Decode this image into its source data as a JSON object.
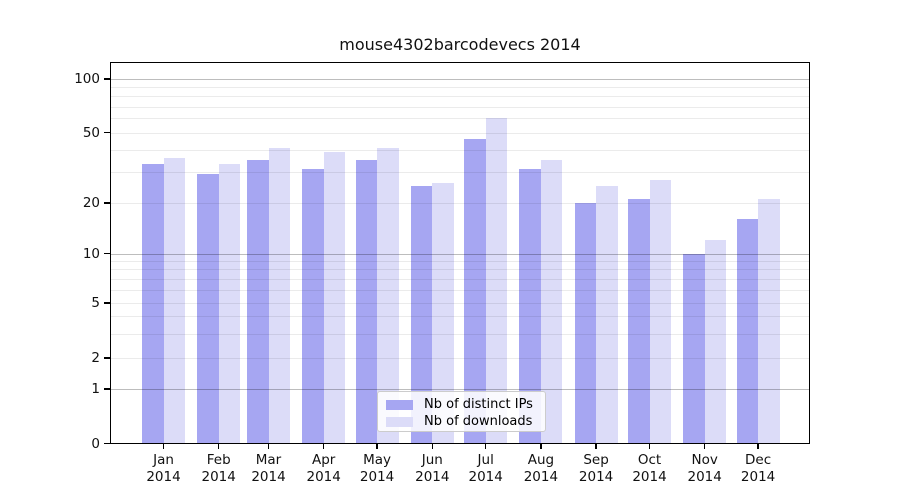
{
  "title": "mouse4302barcodevecs 2014",
  "chart_data": {
    "type": "bar",
    "title": "mouse4302barcodevecs 2014",
    "categories": [
      "Jan",
      "Feb",
      "Mar",
      "Apr",
      "May",
      "Jun",
      "Jul",
      "Aug",
      "Sep",
      "Oct",
      "Nov",
      "Dec"
    ],
    "x_sublabel": "2014",
    "series": [
      {
        "name": "Nb of distinct IPs",
        "color": "#a6a6f2",
        "values": [
          33,
          29,
          35,
          31,
          35,
          25,
          46,
          31,
          20,
          21,
          10,
          16
        ]
      },
      {
        "name": "Nb of downloads",
        "color": "#dcdcf8",
        "values": [
          36,
          33,
          41,
          39,
          41,
          26,
          60,
          35,
          25,
          27,
          12,
          21
        ]
      }
    ],
    "y_ticks": [
      0,
      1,
      2,
      5,
      10,
      20,
      50,
      100
    ],
    "y_scale": "log (with 0 baseline segment)",
    "ylim": [
      0,
      126
    ],
    "grid": true,
    "legend_position": "bottom-center"
  },
  "legend": {
    "items": [
      {
        "label": "Nb of distinct IPs",
        "color": "#a6a6f2"
      },
      {
        "label": "Nb of downloads",
        "color": "#dcdcf8"
      }
    ]
  }
}
